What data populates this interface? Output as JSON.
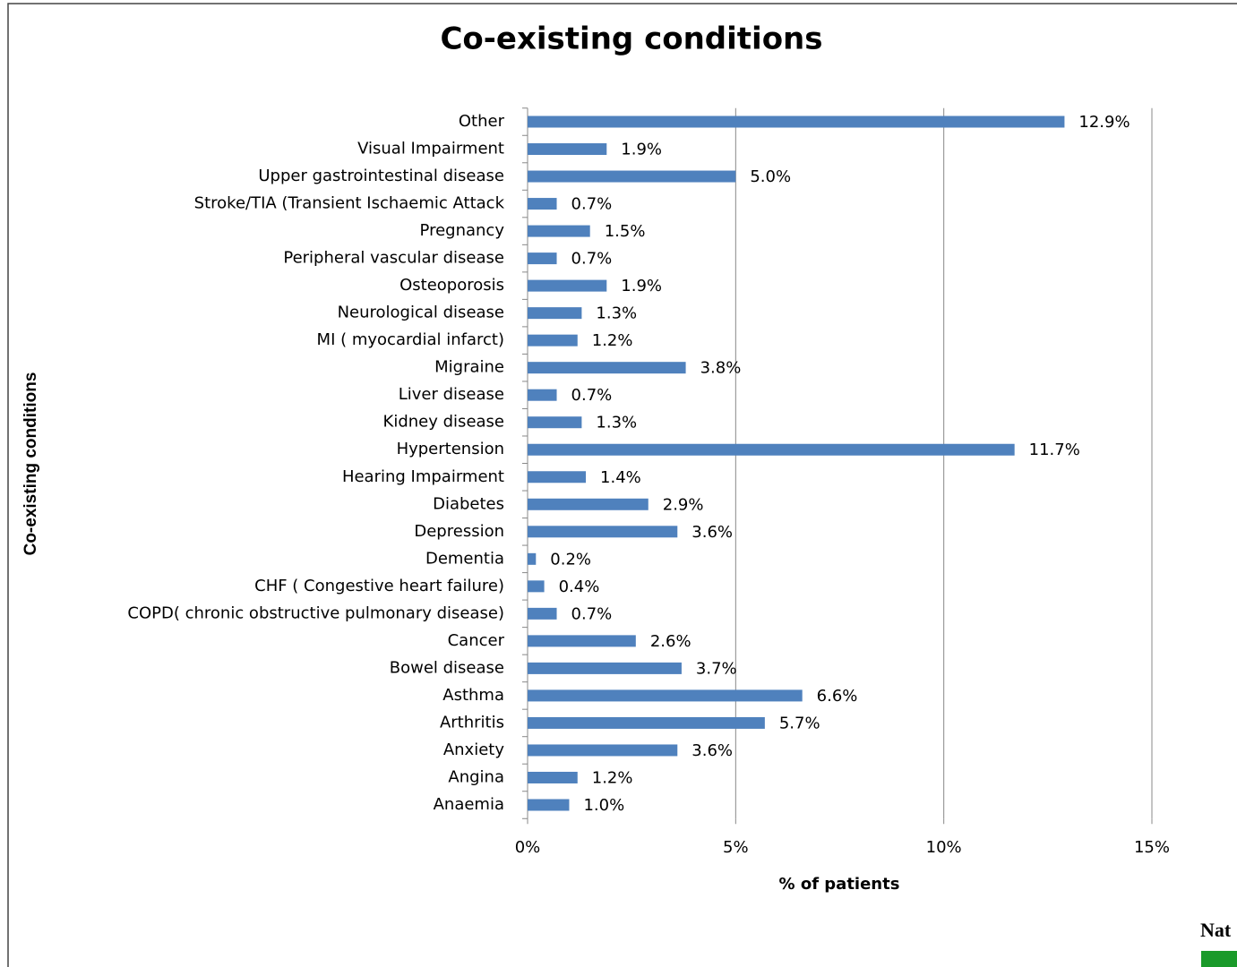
{
  "chart_data": {
    "type": "bar",
    "orientation": "horizontal",
    "title": "Co-existing conditions",
    "x_label": "% of patients",
    "y_label": "Co-existing conditions",
    "categories": [
      "Other",
      "Visual Impairment",
      "Upper gastrointestinal disease",
      "Stroke/TIA (Transient Ischaemic Attack",
      "Pregnancy",
      "Peripheral vascular disease",
      "Osteoporosis",
      "Neurological disease",
      "MI ( myocardial infarct)",
      "Migraine",
      "Liver disease",
      "Kidney disease",
      "Hypertension",
      "Hearing Impairment",
      "Diabetes",
      "Depression",
      "Dementia",
      "CHF ( Congestive heart failure)",
      "COPD( chronic obstructive pulmonary disease)",
      "Cancer",
      "Bowel disease",
      "Asthma",
      "Arthritis",
      "Anxiety",
      "Angina",
      "Anaemia"
    ],
    "values": [
      12.9,
      1.9,
      5.0,
      0.7,
      1.5,
      0.7,
      1.9,
      1.3,
      1.2,
      3.8,
      0.7,
      1.3,
      11.7,
      1.4,
      2.9,
      3.6,
      0.2,
      0.4,
      0.7,
      2.6,
      3.7,
      6.6,
      5.7,
      3.6,
      1.2,
      1.0
    ],
    "value_labels": [
      "12.9%",
      "1.9%",
      "5.0%",
      "0.7%",
      "1.5%",
      "0.7%",
      "1.9%",
      "1.3%",
      "1.2%",
      "3.8%",
      "0.7%",
      "1.3%",
      "11.7%",
      "1.4%",
      "2.9%",
      "3.6%",
      "0.2%",
      "0.4%",
      "0.7%",
      "2.6%",
      "3.7%",
      "6.6%",
      "5.7%",
      "3.6%",
      "1.2%",
      "1.0%"
    ],
    "color": "#4f81bd",
    "xlim": [
      0,
      15
    ],
    "xticks": [
      {
        "value": 0,
        "label": "0%"
      },
      {
        "value": 5,
        "label": "5%"
      },
      {
        "value": 10,
        "label": "10%"
      },
      {
        "value": 15,
        "label": "15%"
      }
    ],
    "grid": true,
    "annotation": "Nat"
  }
}
